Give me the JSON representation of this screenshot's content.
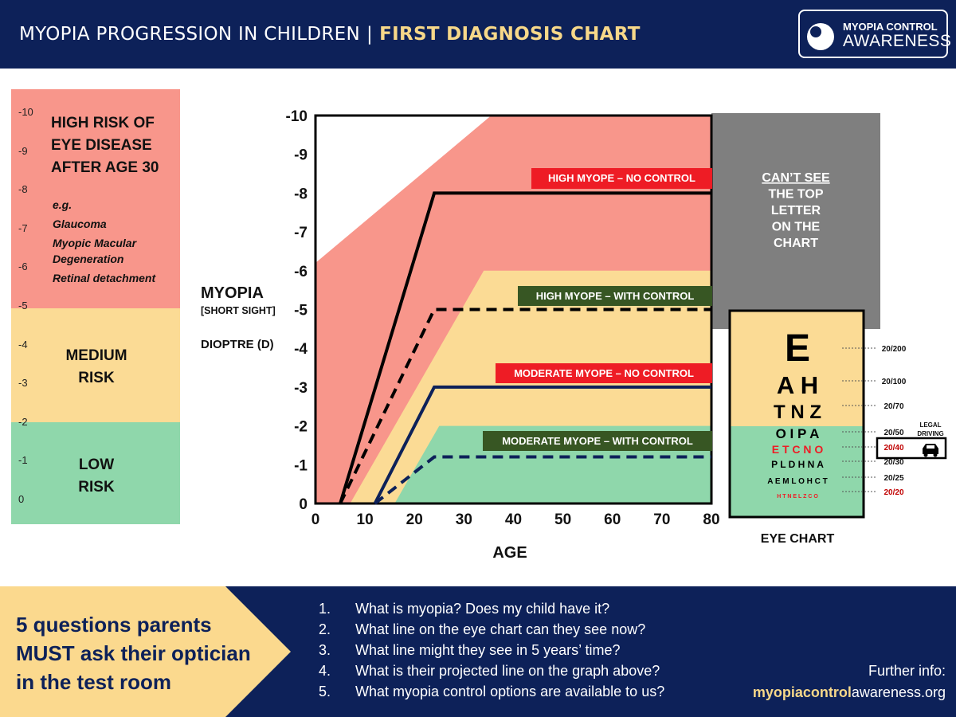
{
  "header": {
    "title": "MYOPIA PROGRESSION IN CHILDREN",
    "separator": "|",
    "subtitle": "FIRST DIAGNOSIS CHART",
    "logo_line1": "MYOPIA CONTROL",
    "logo_line2": "AWARENESS",
    "logo_icon": "eye-icon"
  },
  "risk_scale": {
    "numbers": [
      "-10",
      "-9",
      "-8",
      "-7",
      "-6",
      "-5",
      "-4",
      "-3",
      "-2",
      "-1",
      "0"
    ],
    "high": {
      "label_lines": [
        "HIGH RISK OF",
        "EYE DISEASE",
        "AFTER AGE 30"
      ],
      "examples": [
        "e.g.",
        "Glaucoma",
        "Myopic Macular",
        "Degeneration",
        "Retinal detachment"
      ],
      "color": "#f8968b"
    },
    "medium": {
      "label_lines": [
        "MEDIUM",
        "RISK"
      ],
      "color": "#fbdb95"
    },
    "low": {
      "label_lines": [
        "LOW",
        "RISK"
      ],
      "color": "#8fd7ab"
    }
  },
  "chart_data": {
    "type": "line",
    "xlabel": "AGE",
    "ylabel_lines": [
      "MYOPIA",
      "[SHORT SIGHT]",
      "DIOPTRE (D)"
    ],
    "x_ticks": [
      "0",
      "10",
      "20",
      "30",
      "40",
      "50",
      "60",
      "70",
      "80"
    ],
    "y_ticks": [
      "-10",
      "-9",
      "-8",
      "-7",
      "-6",
      "-5",
      "-4",
      "-3",
      "-2",
      "-1",
      "0"
    ],
    "xlim": [
      0,
      80
    ],
    "ylim": [
      0,
      -10
    ],
    "series": [
      {
        "name": "HIGH MYOPE – NO CONTROL",
        "style": "solid",
        "color": "#000000",
        "label_color": "#ee1c25",
        "x": [
          5,
          24,
          80
        ],
        "y": [
          0,
          -8,
          -8
        ]
      },
      {
        "name": "HIGH MYOPE – WITH CONTROL",
        "style": "dashed",
        "color": "#000000",
        "label_color": "#375623",
        "x": [
          5,
          24,
          80
        ],
        "y": [
          0,
          -5,
          -5
        ]
      },
      {
        "name": "MODERATE MYOPE – NO CONTROL",
        "style": "solid",
        "color": "#0d2159",
        "label_color": "#ee1c25",
        "x": [
          12,
          24,
          80
        ],
        "y": [
          0,
          -3,
          -3
        ]
      },
      {
        "name": "MODERATE MYOPE – WITH CONTROL",
        "style": "dashed",
        "color": "#0d2159",
        "label_color": "#375623",
        "x": [
          12,
          24,
          80
        ],
        "y": [
          0,
          -1.2,
          -1.2
        ]
      }
    ],
    "bands": [
      {
        "color": "#f8968b",
        "x": [
          0,
          35.5,
          80,
          80,
          5,
          0
        ],
        "y": [
          -6.2,
          -10,
          -10,
          0,
          0,
          0
        ]
      },
      {
        "color": "#fbdb95",
        "x": [
          7,
          34,
          80,
          80,
          7
        ],
        "y": [
          0,
          -6,
          -6,
          0,
          0
        ]
      },
      {
        "color": "#8fd7ab",
        "x": [
          16,
          25,
          80,
          80,
          16
        ],
        "y": [
          0,
          -2,
          -2,
          0,
          0
        ]
      }
    ]
  },
  "cant_see": {
    "lines": [
      "CAN’T SEE",
      "THE TOP",
      "LETTER",
      "ON THE",
      "CHART"
    ],
    "color": "#7f7f7f"
  },
  "eye_chart": {
    "caption": "EYE CHART",
    "rows": [
      {
        "letters": "E",
        "acuity": "20/200",
        "color": "#000000"
      },
      {
        "letters": "A H",
        "acuity": "20/100",
        "color": "#000000"
      },
      {
        "letters": "T N Z",
        "acuity": "20/70",
        "color": "#000000"
      },
      {
        "letters": "O I P A",
        "acuity": "20/50",
        "color": "#000000"
      },
      {
        "letters": "E T C N O",
        "acuity": "20/40",
        "color": "#ee1c25"
      },
      {
        "letters": "P L D H N A",
        "acuity": "20/30",
        "color": "#000000"
      },
      {
        "letters": "A E M L O H C T",
        "acuity": "20/25",
        "color": "#000000"
      },
      {
        "letters": "H T N E L Z C O",
        "acuity": "20/20",
        "color": "#ee1c25"
      }
    ],
    "legal_driving_lines": [
      "LEGAL",
      "DRIVING"
    ],
    "car_icon": "car-icon"
  },
  "bottom": {
    "heading_lines": [
      "5 questions parents",
      "MUST ask their optician",
      "in the test room"
    ],
    "questions": [
      {
        "num": "1.",
        "text": "What is myopia? Does my child have it?"
      },
      {
        "num": "2.",
        "text": "What line on the eye chart can they see now?"
      },
      {
        "num": "3.",
        "text": "What line might they see in 5 years’ time?"
      },
      {
        "num": "4.",
        "text": "What is their projected line on the graph above?"
      },
      {
        "num": "5.",
        "text": "What myopia control options are available to us?"
      }
    ],
    "further_info": "Further info:",
    "website_bold": "myopiacontrol",
    "website_rest": "awareness.org"
  }
}
